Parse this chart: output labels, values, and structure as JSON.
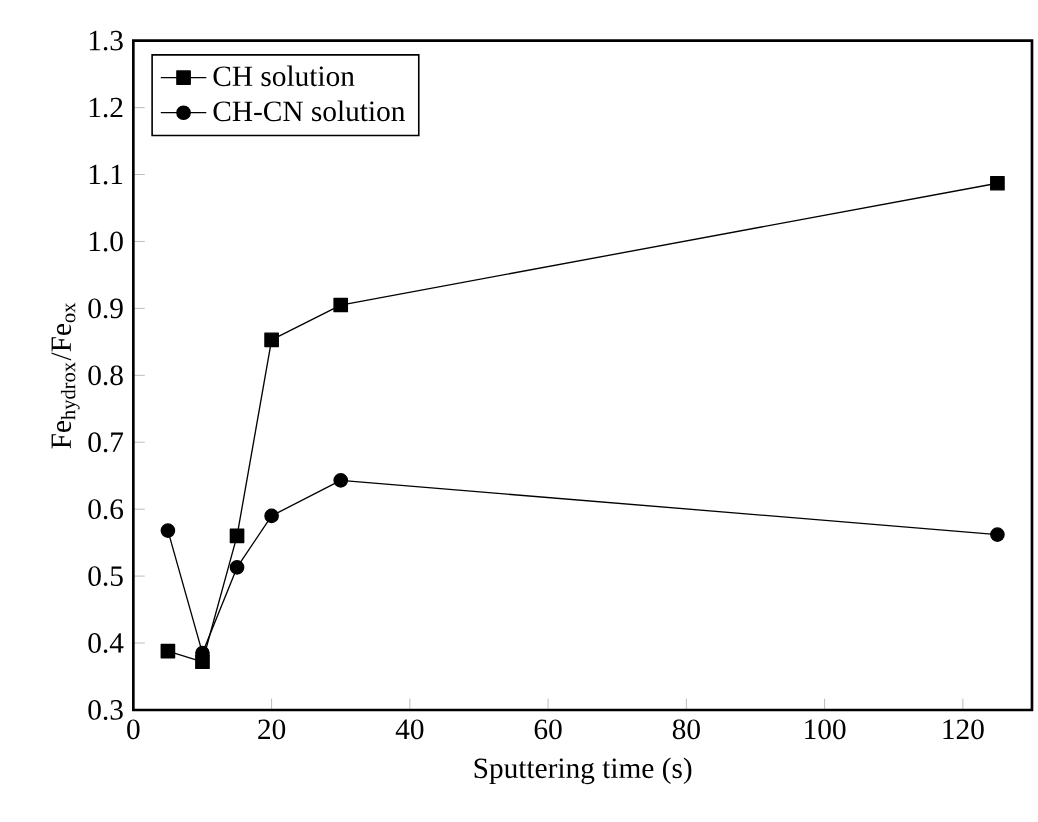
{
  "chart_data": {
    "type": "line",
    "xlabel": "Sputtering time (s)",
    "ylabel": "Fe$_{hydrox}$/Fe$_{ox}$",
    "xlim": [
      0,
      130
    ],
    "xticks": [
      0,
      20,
      40,
      60,
      80,
      100,
      120
    ],
    "ylim": [
      0.3,
      1.3
    ],
    "yticks": [
      0.3,
      0.4,
      0.5,
      0.6,
      0.7,
      0.8,
      0.9,
      {
        "value": 1,
        "label": "1.0"
      },
      1.1,
      1.2,
      1.3
    ],
    "legend": "top left",
    "grid": false,
    "line_style": "solid",
    "x": [
      5,
      10,
      15,
      20,
      30,
      125
    ],
    "series": [
      {
        "name": "CH solution",
        "color": "#000000",
        "marker": "square",
        "values": [
          0.388,
          0.372,
          0.56,
          0.853,
          0.905,
          1.087
        ]
      },
      {
        "name": "CH-CN solution",
        "color": "#000000",
        "marker": "circle",
        "values": [
          0.568,
          0.385,
          0.513,
          0.59,
          0.643,
          0.562
        ]
      }
    ]
  }
}
